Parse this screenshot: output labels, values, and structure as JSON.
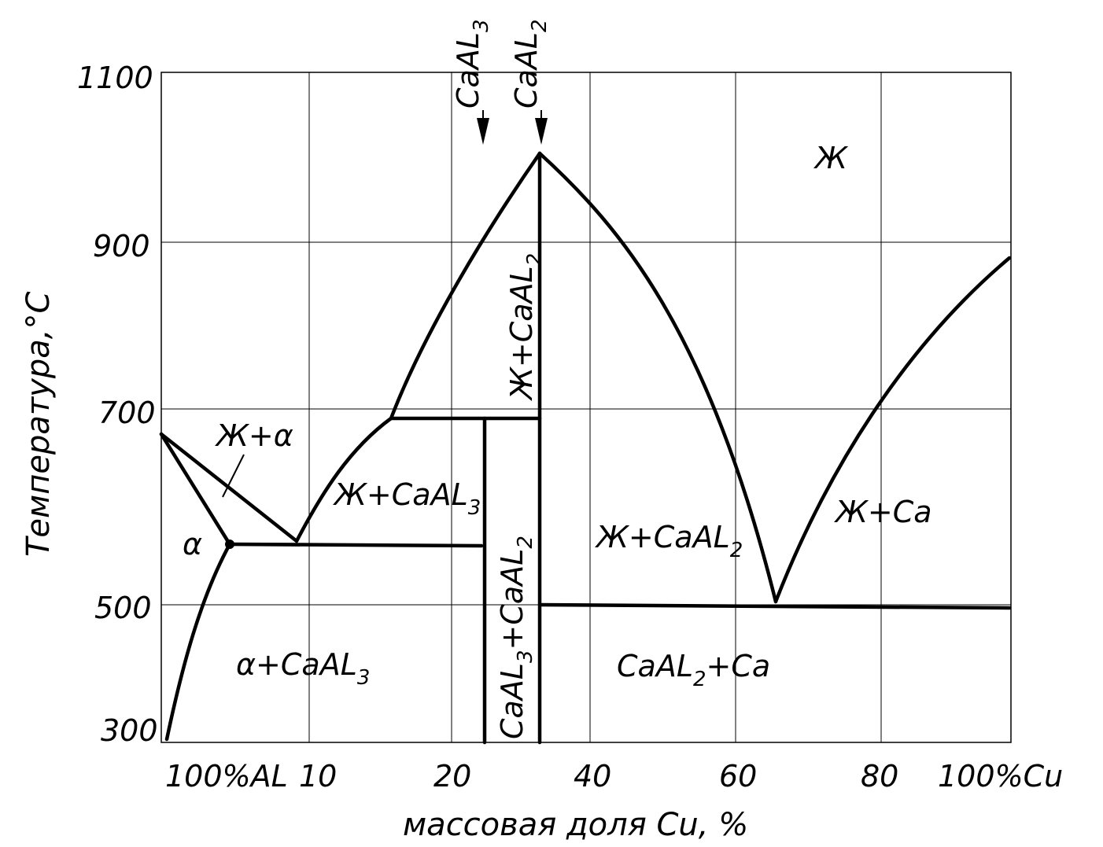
{
  "y_axis": {
    "title": "Температура,°C",
    "ticks": [
      "1100",
      "900",
      "700",
      "500",
      "300"
    ]
  },
  "x_axis": {
    "title": "массовая доля Cu, %",
    "ticks": [
      "100%AL",
      "10",
      "20",
      "40",
      "60",
      "80",
      "100%Cu"
    ]
  },
  "compounds": [
    {
      "id": "caal3",
      "base": "CaAL",
      "sub": "3"
    },
    {
      "id": "caal2",
      "base": "CaAL",
      "sub": "2"
    }
  ],
  "regions": {
    "liquid": {
      "text": "Ж"
    },
    "liq_alpha": {
      "text": "Ж+α"
    },
    "alpha": {
      "text": "α"
    },
    "liq_caal3": {
      "base": "Ж+CaAL",
      "sub": "3"
    },
    "liq_caal2_narrow": {
      "base": "Ж+CaAL",
      "sub": "2"
    },
    "liq_caal2_wide": {
      "base": "Ж+CaAL",
      "sub": "2"
    },
    "liq_ca": {
      "text": "Ж+Ca"
    },
    "alpha_caal3": {
      "base": "α+CaAL",
      "sub": "3"
    },
    "caal3_caal2": {
      "base1": "CaAL",
      "sub1": "3",
      "mid": "+CaAL",
      "sub2": "2"
    },
    "caal2_ca": {
      "base": "CaAL",
      "sub": "2",
      "tail": "+Ca"
    }
  }
}
